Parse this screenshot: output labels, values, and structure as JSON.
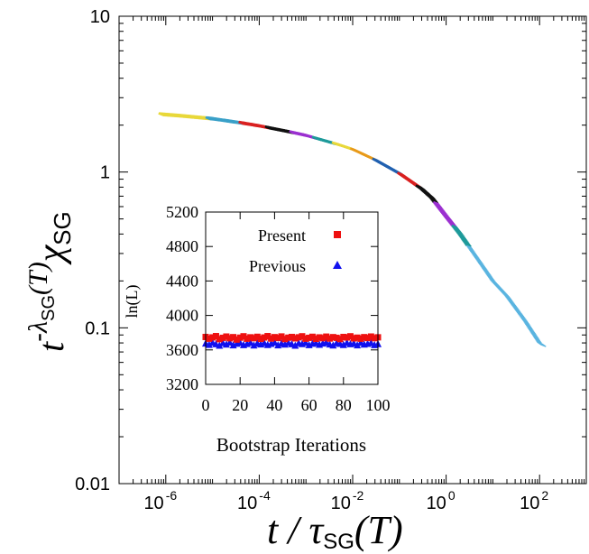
{
  "chart_data": [
    {
      "type": "scatter",
      "panel": "main",
      "xscale": "log",
      "yscale": "log",
      "xlim": [
        1e-07,
        1000.0
      ],
      "ylim": [
        0.01,
        10
      ],
      "x_ticks": [
        {
          "base": "10",
          "exp": "-6"
        },
        {
          "base": "10",
          "exp": "-4"
        },
        {
          "base": "10",
          "exp": "-2"
        },
        {
          "base": "10",
          "exp": "0"
        },
        {
          "base": "10",
          "exp": "2"
        }
      ],
      "y_ticks": [
        "0.01",
        "0.1",
        "1",
        "10"
      ],
      "y_tick_values": [
        0.01,
        0.1,
        1,
        10
      ],
      "x_tick_values": [
        1e-06,
        0.0001,
        0.01,
        1,
        100
      ],
      "xlabel": {
        "t": "t",
        "slash": " / ",
        "tau": "τ",
        "sub": "SG",
        "T": "(T)"
      },
      "ylabel": {
        "t": "t",
        "minus": "-",
        "lambda": "λ",
        "sub1": "SG",
        "T": "(T)",
        "chi": "χ",
        "sub2": "SG"
      },
      "curve": {
        "x": [
          8e-07,
          2e-06,
          1e-05,
          5e-05,
          0.0001,
          0.0005,
          0.001,
          0.005,
          0.01,
          0.03,
          0.1,
          0.3,
          0.5,
          1,
          2,
          5,
          10,
          20,
          50,
          100,
          120
        ],
        "y": [
          2.35,
          2.3,
          2.2,
          2.05,
          1.98,
          1.8,
          1.72,
          1.5,
          1.4,
          1.2,
          0.98,
          0.78,
          0.68,
          0.52,
          0.4,
          0.27,
          0.2,
          0.16,
          0.11,
          0.08,
          0.077
        ]
      },
      "segments": [
        {
          "from": 8e-07,
          "to": 8e-06,
          "color": "#e8d83a"
        },
        {
          "from": 8e-06,
          "to": 4e-05,
          "color": "#3aa0c8"
        },
        {
          "from": 4e-05,
          "to": 0.00015,
          "color": "#d92020"
        },
        {
          "from": 0.00015,
          "to": 0.0005,
          "color": "#111111"
        },
        {
          "from": 0.0005,
          "to": 0.0015,
          "color": "#9b30d0"
        },
        {
          "from": 0.0015,
          "to": 0.004,
          "color": "#1e9a9a"
        },
        {
          "from": 0.004,
          "to": 0.01,
          "color": "#e8d83a"
        },
        {
          "from": 0.01,
          "to": 0.03,
          "color": "#e89a1a"
        },
        {
          "from": 0.03,
          "to": 0.1,
          "color": "#2060b0"
        },
        {
          "from": 0.1,
          "to": 0.25,
          "color": "#d92020"
        },
        {
          "from": 0.25,
          "to": 0.6,
          "color": "#111111"
        },
        {
          "from": 0.6,
          "to": 1.5,
          "color": "#9b30d0"
        },
        {
          "from": 1.5,
          "to": 3,
          "color": "#1e9a9a"
        },
        {
          "from": 3,
          "to": 120,
          "color": "#5ab4e0"
        }
      ]
    },
    {
      "type": "scatter",
      "panel": "inset",
      "xlim": [
        0,
        100
      ],
      "ylim": [
        3200,
        5200
      ],
      "x_ticks": [
        "0",
        "20",
        "40",
        "60",
        "80",
        "100"
      ],
      "x_tick_values": [
        0,
        20,
        40,
        60,
        80,
        100
      ],
      "y_ticks": [
        "3200",
        "3600",
        "4000",
        "4400",
        "4800",
        "5200"
      ],
      "y_tick_values": [
        3200,
        3600,
        4000,
        4400,
        4800,
        5200
      ],
      "xlabel": "Bootstrap Iterations",
      "ylabel": "ln(L)",
      "legend_position": "top-right",
      "series": [
        {
          "name": "Present",
          "marker": "square",
          "color": "#ee1111",
          "x": [
            0,
            2,
            4,
            6,
            8,
            10,
            12,
            14,
            16,
            18,
            20,
            22,
            24,
            26,
            28,
            30,
            32,
            34,
            36,
            38,
            40,
            42,
            44,
            46,
            48,
            50,
            52,
            54,
            56,
            58,
            60,
            62,
            64,
            66,
            68,
            70,
            72,
            74,
            76,
            78,
            80,
            82,
            84,
            86,
            88,
            90,
            92,
            94,
            96,
            98,
            100
          ],
          "y": [
            3750,
            3730,
            3745,
            3760,
            3725,
            3740,
            3755,
            3735,
            3748,
            3720,
            3742,
            3758,
            3730,
            3746,
            3736,
            3752,
            3728,
            3744,
            3760,
            3732,
            3748,
            3738,
            3756,
            3726,
            3742,
            3750,
            3734,
            3746,
            3758,
            3730,
            3740,
            3752,
            3728,
            3745,
            3736,
            3754,
            3732,
            3748,
            3740,
            3726,
            3750,
            3744,
            3758,
            3734,
            3742,
            3730,
            3748,
            3738,
            3755,
            3736,
            3746
          ]
        },
        {
          "name": "Previous",
          "marker": "triangle",
          "color": "#1111ee",
          "x": [
            0,
            2,
            4,
            6,
            8,
            10,
            12,
            14,
            16,
            18,
            20,
            22,
            24,
            26,
            28,
            30,
            32,
            34,
            36,
            38,
            40,
            42,
            44,
            46,
            48,
            50,
            52,
            54,
            56,
            58,
            60,
            62,
            64,
            66,
            68,
            70,
            72,
            74,
            76,
            78,
            80,
            82,
            84,
            86,
            88,
            90,
            92,
            94,
            96,
            98,
            100
          ],
          "y": [
            3680,
            3665,
            3690,
            3672,
            3655,
            3685,
            3668,
            3692,
            3660,
            3678,
            3688,
            3662,
            3675,
            3690,
            3658,
            3682,
            3670,
            3686,
            3664,
            3676,
            3692,
            3660,
            3680,
            3668,
            3688,
            3672,
            3656,
            3684,
            3674,
            3690,
            3662,
            3678,
            3686,
            3666,
            3680,
            3692,
            3670,
            3658,
            3684,
            3676,
            3664,
            3688,
            3672,
            3682,
            3660,
            3690,
            3668,
            3676,
            3686,
            3662,
            3674
          ]
        }
      ]
    }
  ]
}
